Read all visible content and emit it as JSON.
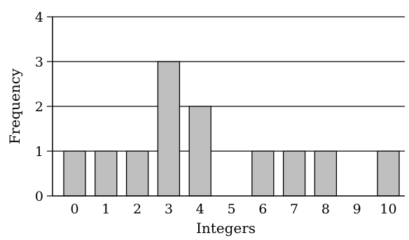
{
  "chart_data": {
    "type": "bar",
    "title": "",
    "xlabel": "Integers",
    "ylabel": "Frequency",
    "categories": [
      "0",
      "1",
      "2",
      "3",
      "4",
      "5",
      "6",
      "7",
      "8",
      "9",
      "10"
    ],
    "values": [
      1,
      1,
      1,
      3,
      2,
      0,
      1,
      1,
      1,
      0,
      1
    ],
    "ylim": [
      0,
      4
    ],
    "yticks": [
      "0",
      "1",
      "2",
      "3",
      "4"
    ],
    "grid": true,
    "bar_color": "#bfbfbf",
    "bar_edge_color": "#000000"
  }
}
